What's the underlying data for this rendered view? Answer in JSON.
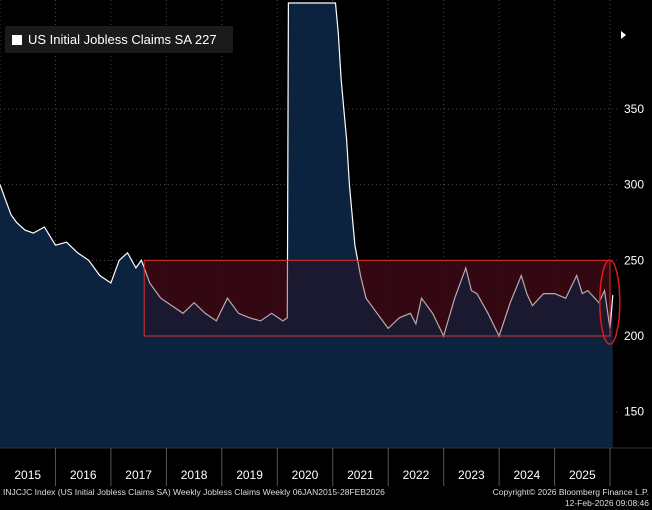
{
  "chart_data": {
    "type": "area",
    "title": "US Initial Jobless Claims SA",
    "legend": [
      {
        "label": "US Initial Jobless Claims SA",
        "last_value": "227",
        "color": "#ffffff"
      }
    ],
    "x_ticks": [
      "2015",
      "2016",
      "2017",
      "2018",
      "2019",
      "2020",
      "2021",
      "2022",
      "2023",
      "2024",
      "2025"
    ],
    "y_ticks": [
      150,
      200,
      250,
      300,
      350
    ],
    "ylim": [
      126,
      422
    ],
    "xlim": [
      2015.0,
      2026.18
    ],
    "band": {
      "low": 200,
      "high": 250,
      "start": 2017.6,
      "end": 2026.0
    },
    "series": [
      {
        "name": "US Initial Jobless Claims SA",
        "x": [
          2015.0,
          2015.1,
          2015.2,
          2015.3,
          2015.45,
          2015.6,
          2015.8,
          2016.0,
          2016.2,
          2016.4,
          2016.6,
          2016.8,
          2017.0,
          2017.15,
          2017.3,
          2017.45,
          2017.55,
          2017.7,
          2017.9,
          2018.1,
          2018.3,
          2018.5,
          2018.7,
          2018.9,
          2019.1,
          2019.3,
          2019.5,
          2019.7,
          2019.9,
          2020.1,
          2020.18,
          2020.2,
          2020.22,
          2020.3,
          2021.0,
          2021.05,
          2021.1,
          2021.15,
          2021.2,
          2021.25,
          2021.3,
          2021.4,
          2021.5,
          2021.6,
          2021.8,
          2022.0,
          2022.2,
          2022.4,
          2022.5,
          2022.6,
          2022.8,
          2023.0,
          2023.2,
          2023.4,
          2023.5,
          2023.6,
          2023.8,
          2024.0,
          2024.2,
          2024.4,
          2024.5,
          2024.6,
          2024.8,
          2025.0,
          2025.2,
          2025.4,
          2025.5,
          2025.6,
          2025.8,
          2025.9,
          2026.0,
          2026.05
        ],
        "values": [
          300,
          290,
          280,
          275,
          270,
          268,
          272,
          260,
          262,
          255,
          250,
          240,
          235,
          250,
          255,
          245,
          250,
          235,
          225,
          220,
          215,
          222,
          215,
          210,
          225,
          215,
          212,
          210,
          215,
          210,
          212,
          420,
          420,
          420,
          420,
          420,
          400,
          370,
          350,
          330,
          300,
          260,
          240,
          225,
          215,
          205,
          212,
          215,
          208,
          225,
          215,
          200,
          225,
          245,
          230,
          228,
          215,
          200,
          222,
          240,
          228,
          220,
          228,
          228,
          225,
          240,
          228,
          230,
          222,
          230,
          205,
          227
        ]
      }
    ]
  },
  "legend_text": "US Initial Jobless Claims SA 227",
  "footer": {
    "left": "INJCJC Index (US Initial Jobless Claims SA) Weekly Jobless Claims Weekly 06JAN2015-28FEB2026",
    "right_line1": "Copyright© 2026 Bloomberg Finance L.P.",
    "right_line2": "12-Feb-2026 09:08:46"
  },
  "colors": {
    "area_fill": "#0c2340",
    "line": "#ffffff",
    "band_border": "#e03030",
    "band_fill": "#3a0a14",
    "grid": "#4a4a4a",
    "axis_text": "#ffffff",
    "highlight": "#e01a1a"
  }
}
